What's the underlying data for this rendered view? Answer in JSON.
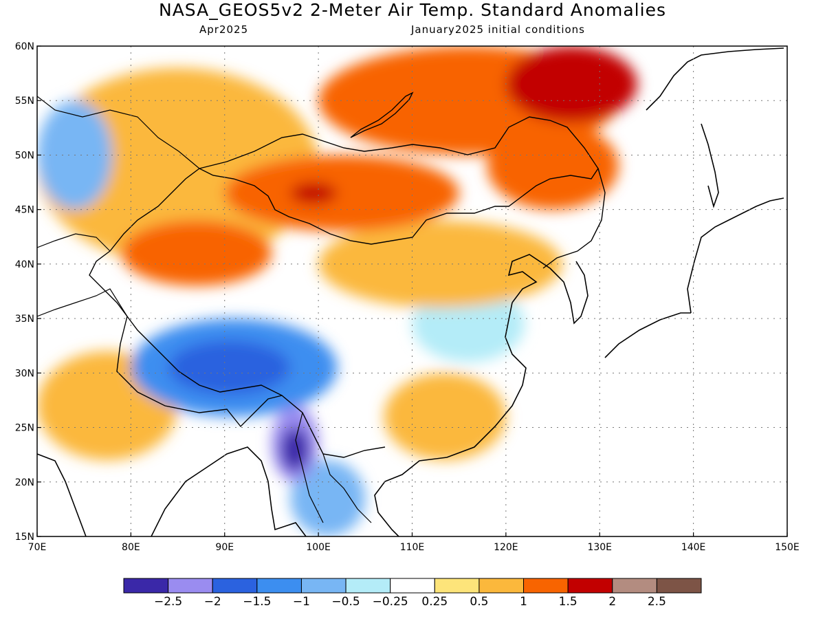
{
  "title": "NASA_GEOS5v2 2-Meter Air Temp. Standard Anomalies",
  "subtitle_left": "Apr2025",
  "subtitle_right": "January2025 initial conditions",
  "map": {
    "lon_range": [
      70,
      150
    ],
    "lat_range": [
      15,
      60
    ],
    "lon_ticks": [
      "70E",
      "80E",
      "90E",
      "100E",
      "110E",
      "120E",
      "130E",
      "140E",
      "150E"
    ],
    "lat_ticks": [
      "15N",
      "20N",
      "25N",
      "30N",
      "35N",
      "40N",
      "45N",
      "50N",
      "55N",
      "60N"
    ],
    "grid": "dotted"
  },
  "colorbar": {
    "colors": [
      "#3a28a8",
      "#9a8cf0",
      "#2b62df",
      "#3c8ef0",
      "#78b6f4",
      "#b4ecf8",
      "#ffffff",
      "#fde47a",
      "#fbb83c",
      "#f86400",
      "#c20000",
      "#b38c80",
      "#7d5446"
    ],
    "labels": [
      "−2.5",
      "−2",
      "−1.5",
      "−1",
      "−0.5",
      "−0.25",
      "0.25",
      "0.5",
      "1",
      "1.5",
      "2",
      "2.5"
    ]
  },
  "regions": [
    {
      "name": "siberia-warm",
      "level": 9,
      "lon": [
        100,
        132
      ],
      "lat": [
        50,
        60
      ]
    },
    {
      "name": "northeast-china-warm",
      "level": 9,
      "lon": [
        118,
        132
      ],
      "lat": [
        45,
        53
      ]
    },
    {
      "name": "far-east-strong-warm",
      "level": 10,
      "lon": [
        120,
        134
      ],
      "lat": [
        53,
        60
      ]
    },
    {
      "name": "mongolia-warm",
      "level": 9,
      "lon": [
        90,
        115
      ],
      "lat": [
        43,
        50
      ]
    },
    {
      "name": "mongolia-core",
      "level": 10,
      "lon": [
        97,
        102
      ],
      "lat": [
        45.5,
        47.5
      ]
    },
    {
      "name": "northwest-china-warm",
      "level": 9,
      "lon": [
        79,
        95
      ],
      "lat": [
        38,
        44
      ]
    },
    {
      "name": "central-asia-warm",
      "level": 8,
      "lon": [
        70,
        100
      ],
      "lat": [
        40,
        58
      ]
    },
    {
      "name": "north-china-warm",
      "level": 8,
      "lon": [
        100,
        126
      ],
      "lat": [
        36,
        44
      ]
    },
    {
      "name": "tibet-cold",
      "level": 3,
      "lon": [
        80,
        102
      ],
      "lat": [
        26,
        35
      ]
    },
    {
      "name": "tibet-core",
      "level": 2,
      "lon": [
        84,
        97
      ],
      "lat": [
        28,
        33
      ]
    },
    {
      "name": "myanmar-strong-cold",
      "level": 1,
      "lon": [
        95,
        100
      ],
      "lat": [
        20,
        27
      ]
    },
    {
      "name": "myanmar-core",
      "level": 0,
      "lon": [
        96,
        99
      ],
      "lat": [
        21,
        25
      ]
    },
    {
      "name": "indochina-cool",
      "level": 4,
      "lon": [
        97,
        105
      ],
      "lat": [
        15,
        22
      ]
    },
    {
      "name": "south-china-warm",
      "level": 8,
      "lon": [
        107,
        120
      ],
      "lat": [
        22,
        30
      ]
    },
    {
      "name": "india-warm",
      "level": 8,
      "lon": [
        70,
        85
      ],
      "lat": [
        22,
        32
      ]
    },
    {
      "name": "kazakh-cool",
      "level": 4,
      "lon": [
        70,
        78
      ],
      "lat": [
        45,
        55
      ]
    },
    {
      "name": "east-china-cool",
      "level": 5,
      "lon": [
        110,
        122
      ],
      "lat": [
        31,
        38
      ]
    }
  ]
}
